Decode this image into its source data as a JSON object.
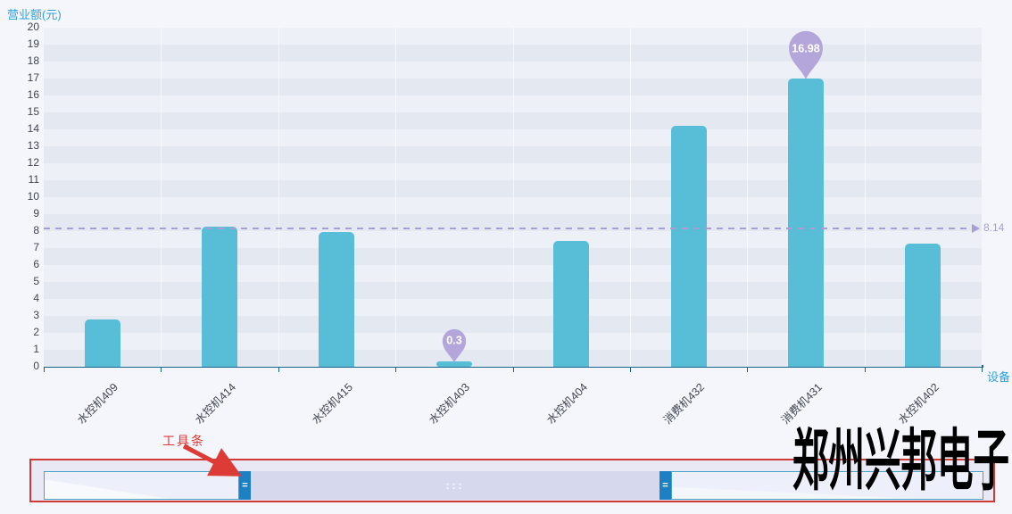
{
  "colors": {
    "bar": "#58bdd6",
    "x_axis_line": "#17658a",
    "y_axis_line": "#1b93ad",
    "axis_title": "#2aa3dc",
    "tick_text": "#3e4450",
    "mark_point_fill": "#b4a5da",
    "mark_point_text": "#ffffff",
    "mark_line": "#a79ed6",
    "stripe_light": "#edf0f7",
    "stripe_dark": "#e4e8f1",
    "page_bg": "#f5f6fb",
    "slider_handle": "#1d80c3",
    "slider_track_border": "#44a3c4",
    "slider_selected_fill": "#d6d9ed",
    "annotation_red": "#dd3b35",
    "watermark_color": "#000000"
  },
  "chart_data": {
    "type": "bar",
    "title": "",
    "ylabel": "营业额(元)",
    "xlabel": "设备",
    "categories": [
      "水控机409",
      "水控机414",
      "水控机415",
      "水控机403",
      "水控机404",
      "消费机432",
      "消费机431",
      "水控机402"
    ],
    "values": [
      2.8,
      8.25,
      7.95,
      0.3,
      7.4,
      14.2,
      16.98,
      7.25
    ],
    "ylim": [
      0,
      20
    ],
    "y_tick_interval": 1,
    "y_ticks": [
      0,
      1,
      2,
      3,
      4,
      5,
      6,
      7,
      8,
      9,
      10,
      11,
      12,
      13,
      14,
      15,
      16,
      17,
      18,
      19,
      20
    ],
    "grid": "horizontal-stripes",
    "legend": "none",
    "x_label_rotation": -45,
    "mark_points": [
      {
        "category": "消费机431",
        "index": 6,
        "label": "16.98",
        "symbol_size": 46
      },
      {
        "category": "水控机403",
        "index": 3,
        "label": "0.3",
        "symbol_size": 32
      }
    ],
    "mark_line": {
      "value": 8.14,
      "label": "8.14",
      "style": "dashed",
      "arrow": "right"
    }
  },
  "toolbar": {
    "annotation_label": "工具条",
    "handle_grip": "=",
    "move_dots": ":::"
  },
  "watermark": "郑州兴邦电子"
}
